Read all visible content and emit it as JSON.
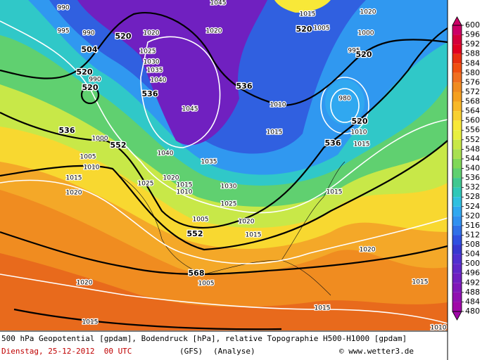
{
  "map": {
    "labels": [
      "990",
      "995",
      "990",
      "520",
      "1020",
      "504",
      "1025",
      "1030",
      "1035",
      "1040",
      "520",
      "990",
      "520",
      "536",
      "1045",
      "536",
      "1010",
      "1015",
      "536",
      "1000",
      "552",
      "1040",
      "1035",
      "1005",
      "1010",
      "1015",
      "1020",
      "1025",
      "1015",
      "1010",
      "1030",
      "1025",
      "1020",
      "1005",
      "1020",
      "1015",
      "552",
      "1020",
      "568",
      "1005",
      "1020",
      "1015",
      "1015",
      "1015",
      "1010",
      "1045",
      "1015",
      "1005",
      "1020",
      "520",
      "1000",
      "1020",
      "995",
      "520",
      "980",
      "520",
      "536",
      "1015",
      "1010",
      "1015"
    ]
  },
  "colorbar": {
    "ticks": [
      600,
      596,
      592,
      588,
      584,
      580,
      576,
      572,
      568,
      564,
      560,
      556,
      552,
      548,
      544,
      540,
      536,
      532,
      528,
      524,
      520,
      516,
      512,
      508,
      504,
      500,
      496,
      492,
      488,
      484,
      480
    ],
    "colors": [
      "#cc0066",
      "#d4003a",
      "#e00020",
      "#e83010",
      "#f05010",
      "#f07020",
      "#f08c20",
      "#f4a020",
      "#f8b828",
      "#f8d030",
      "#f8e838",
      "#e8f040",
      "#c8e848",
      "#a8e050",
      "#80d858",
      "#60d070",
      "#40c890",
      "#30c8b8",
      "#30c0e0",
      "#30a8f0",
      "#3090f0",
      "#3070e8",
      "#3050e0",
      "#3838d0",
      "#5030d0",
      "#6028c8",
      "#7020c0",
      "#8018b8",
      "#9010b0",
      "#a008a8"
    ]
  },
  "footer": {
    "line1": "500 hPa Geopotential [gpdam], Bodendruck [hPa], relative Topographie H500-H1000 [gpdam]",
    "date": "Dienstag, 25-12-2012  00 UTC",
    "model": "(GFS)",
    "kind": "(Analyse)",
    "credit": "© www.wetter3.de"
  }
}
